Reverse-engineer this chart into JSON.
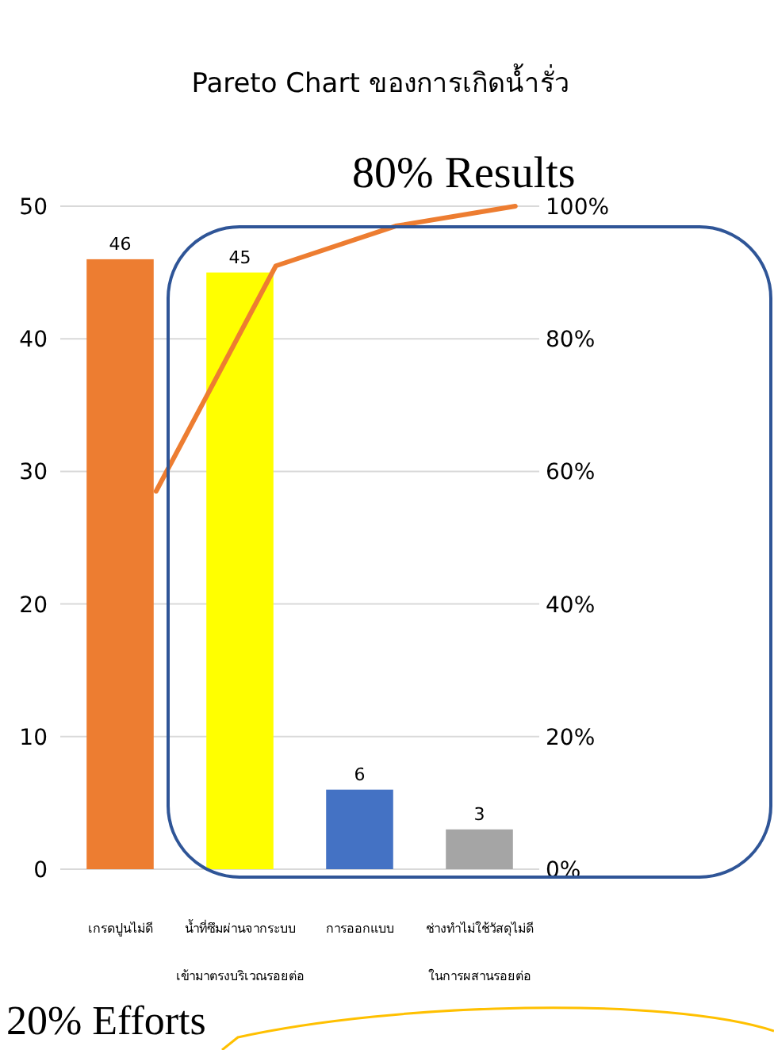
{
  "chart_data": {
    "type": "bar",
    "title": "Pareto Chart ของการเกิดน้ำรั่ว",
    "categories": [
      "เกรดปูนไม่ดี",
      "น้ำที่ซึมผ่านจากระบบ เข้ามาตรงบริเวณรอยต่อ",
      "การออกแบบ",
      "ช่างทำไม่ใช้วัสดุไม่ดี ในการผสานรอยต่อ"
    ],
    "series": [
      {
        "colors": [
          "#ed7d31",
          "#ffff00",
          "#4472c4",
          "#a5a5a5"
        ],
        "values": [
          46,
          45,
          6,
          3
        ],
        "value_labels": [
          "46",
          "45",
          "6",
          "3"
        ]
      },
      {
        "type": "line",
        "axis": "y2",
        "color": "#ed7d31",
        "values": [
          57,
          91,
          97,
          100
        ]
      }
    ],
    "ylim": [
      0,
      50
    ],
    "yticks": [
      0,
      10,
      20,
      30,
      40,
      50
    ],
    "y2lim": [
      0,
      100
    ],
    "y2ticks": [
      {
        "value": 0,
        "label": "0%"
      },
      {
        "value": 20,
        "label": "20%"
      },
      {
        "value": 40,
        "label": "40%"
      },
      {
        "value": 60,
        "label": "60%"
      },
      {
        "value": 80,
        "label": "80%"
      },
      {
        "value": 100,
        "label": "100%"
      }
    ],
    "grid": "y",
    "annotations": [
      "80% Results",
      "20% Efforts"
    ]
  }
}
